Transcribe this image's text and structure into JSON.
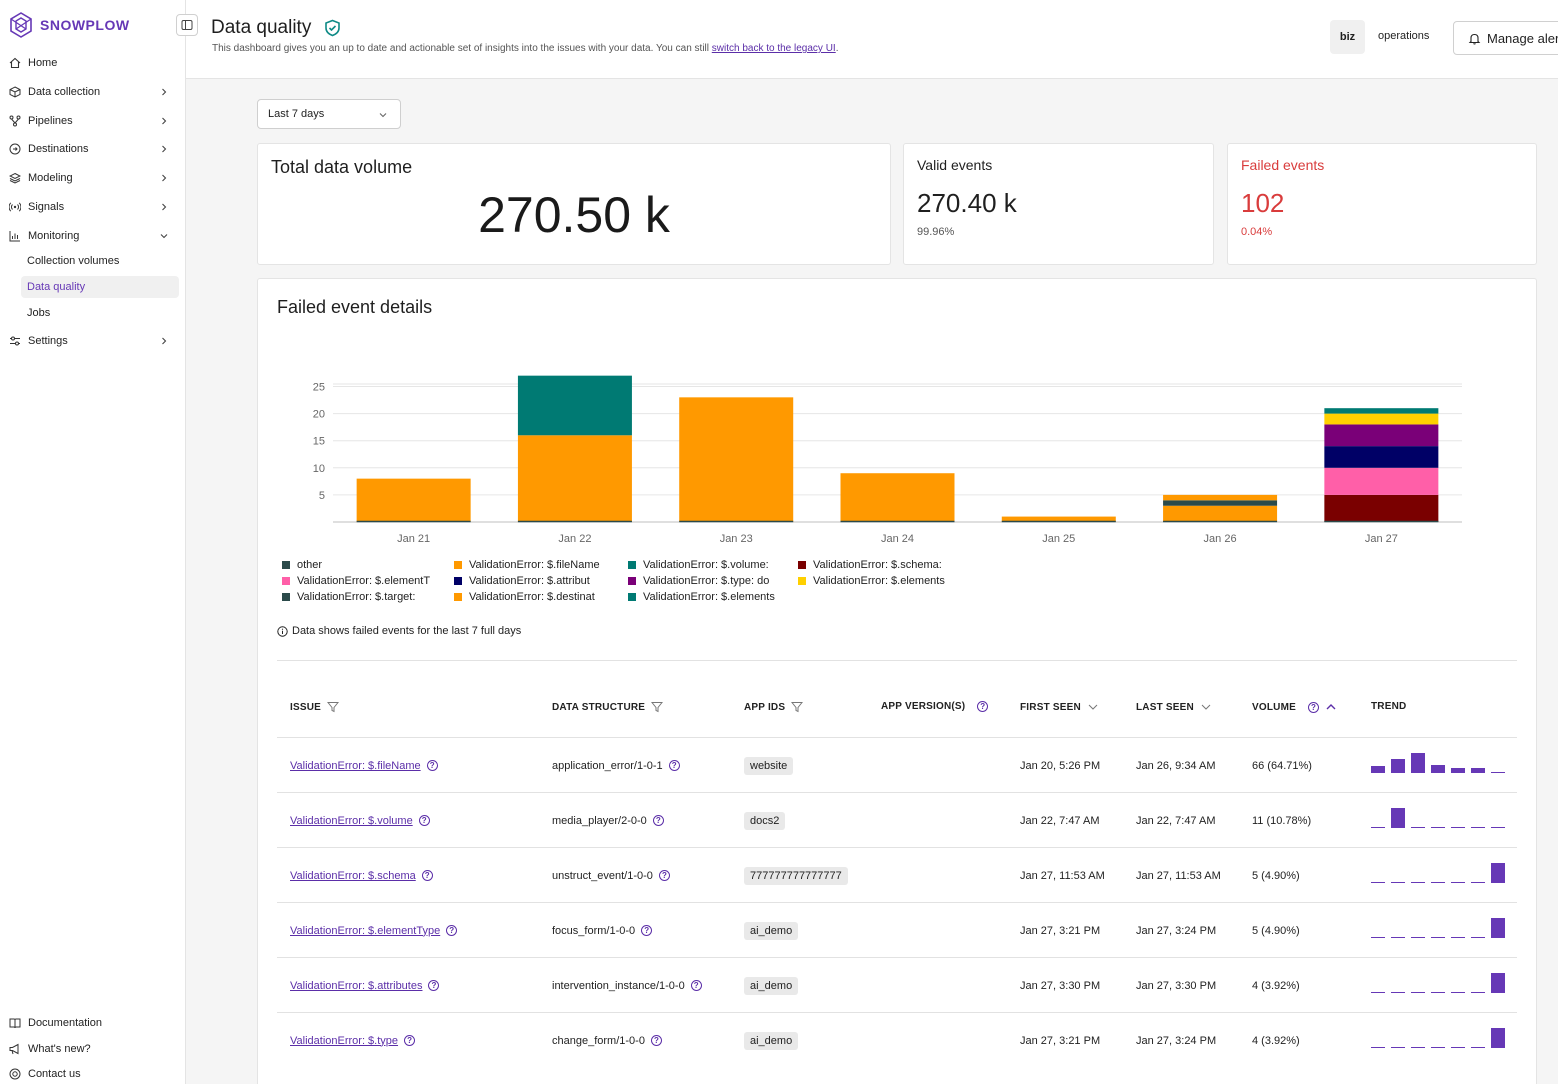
{
  "sidebar": {
    "logo_text": "SNOWPLOW",
    "items": [
      {
        "label": "Home",
        "icon": "home-icon",
        "chevron": false
      },
      {
        "label": "Data collection",
        "icon": "cube-icon",
        "chevron": true
      },
      {
        "label": "Pipelines",
        "icon": "pipeline-icon",
        "chevron": true
      },
      {
        "label": "Destinations",
        "icon": "destination-icon",
        "chevron": true
      },
      {
        "label": "Modeling",
        "icon": "layers-icon",
        "chevron": true
      },
      {
        "label": "Signals",
        "icon": "signal-icon",
        "chevron": true
      },
      {
        "label": "Monitoring",
        "icon": "chart-icon",
        "chevron": "down"
      }
    ],
    "sub_items": [
      "Collection volumes",
      "Data quality",
      "Jobs"
    ],
    "settings": "Settings",
    "footer": [
      "Documentation",
      "What's new?",
      "Contact us"
    ]
  },
  "header": {
    "title": "Data quality",
    "subtitle_pre": "This dashboard gives you an up to date and actionable set of insights into the issues with your data. You can still ",
    "subtitle_link": "switch back to the legacy UI",
    "subtitle_post": ".",
    "org_badge": "biz",
    "org_name": "operations",
    "manage_button": "Manage aler"
  },
  "filters": {
    "period": "Last 7 days"
  },
  "cards": {
    "total": {
      "title": "Total data volume",
      "value": "270.50 k"
    },
    "valid": {
      "title": "Valid events",
      "value": "270.40 k",
      "percent": "99.96%"
    },
    "failed": {
      "title": "Failed events",
      "value": "102",
      "percent": "0.04%"
    }
  },
  "details": {
    "title": "Failed event details",
    "note": "Data shows failed events for the last 7 full days"
  },
  "chart_data": {
    "type": "bar",
    "stacked": true,
    "categories": [
      "Jan 21",
      "Jan 22",
      "Jan 23",
      "Jan 24",
      "Jan 25",
      "Jan 26",
      "Jan 27"
    ],
    "yticks": [
      5,
      10,
      15,
      20,
      25
    ],
    "ylim": [
      0,
      28
    ],
    "series": [
      {
        "name": "ValidationError: $.fileName",
        "color": "#ff9900",
        "values": [
          8,
          16,
          23,
          9,
          1,
          3,
          0
        ]
      },
      {
        "name": "other",
        "color": "#2b4a4a",
        "values": [
          0,
          0,
          0,
          0,
          0,
          1,
          0
        ]
      },
      {
        "name": "ValidationError: $.destinat",
        "color": "#ff9900",
        "values": [
          0,
          0,
          0,
          0,
          0,
          1,
          0
        ]
      },
      {
        "name": "ValidationError: $.volume:",
        "color": "#007a73",
        "values": [
          0,
          11,
          0,
          0,
          0,
          0,
          0
        ]
      },
      {
        "name": "ValidationError: $.schema:",
        "color": "#7a0000",
        "values": [
          0,
          0,
          0,
          0,
          0,
          0,
          5
        ]
      },
      {
        "name": "ValidationError: $.elementT",
        "color": "#ff5fa8",
        "values": [
          0,
          0,
          0,
          0,
          0,
          0,
          5
        ]
      },
      {
        "name": "ValidationError: $.attribut",
        "color": "#000066",
        "values": [
          0,
          0,
          0,
          0,
          0,
          0,
          4
        ]
      },
      {
        "name": "ValidationError: $.type: do",
        "color": "#7a0078",
        "values": [
          0,
          0,
          0,
          0,
          0,
          0,
          4
        ]
      },
      {
        "name": "ValidationError: $.elements",
        "color": "#ffd000",
        "values": [
          0,
          0,
          0,
          0,
          0,
          0,
          2
        ]
      },
      {
        "name": "ValidationError: $.elements",
        "color": "#007a73",
        "values": [
          0,
          0,
          0,
          0,
          0,
          0,
          1
        ]
      },
      {
        "name": "ValidationError: $.target:",
        "color": "#2b4a4a",
        "values": [
          0,
          0,
          0,
          0,
          0,
          0,
          0
        ]
      }
    ]
  },
  "legend": [
    {
      "label": "other",
      "color": "#2b4a4a"
    },
    {
      "label": "ValidationError: $.fileName",
      "color": "#ff9900"
    },
    {
      "label": "ValidationError: $.volume:",
      "color": "#007a73"
    },
    {
      "label": "ValidationError: $.schema:",
      "color": "#7a0000"
    },
    {
      "label": "ValidationError: $.elementT",
      "color": "#ff5fa8"
    },
    {
      "label": "ValidationError: $.attribut",
      "color": "#000066"
    },
    {
      "label": "ValidationError: $.type: do",
      "color": "#7a0078"
    },
    {
      "label": "ValidationError: $.elements",
      "color": "#ffd000"
    },
    {
      "label": "ValidationError: $.target:",
      "color": "#2b4a4a"
    },
    {
      "label": "ValidationError: $.destinat",
      "color": "#ff9900"
    },
    {
      "label": "ValidationError: $.elements",
      "color": "#007a73"
    }
  ],
  "table": {
    "headers": [
      "ISSUE",
      "DATA STRUCTURE",
      "APP IDS",
      "APP VERSION(S)",
      "FIRST SEEN",
      "LAST SEEN",
      "VOLUME",
      "TREND"
    ],
    "rows": [
      {
        "issue": "ValidationError: $.fileName",
        "structure": "application_error/1-0-1",
        "app_id": "website",
        "first": "Jan 20, 5:26 PM",
        "last": "Jan 26, 9:34 AM",
        "volume": "66 (64.71%)",
        "trend": [
          8,
          16,
          23,
          9,
          1,
          3,
          0
        ]
      },
      {
        "issue": "ValidationError: $.volume",
        "structure": "media_player/2-0-0",
        "app_id": "docs2",
        "first": "Jan 22, 7:47 AM",
        "last": "Jan 22, 7:47 AM",
        "volume": "11 (10.78%)",
        "trend": [
          0,
          11,
          0,
          0,
          0,
          0,
          0
        ]
      },
      {
        "issue": "ValidationError: $.schema",
        "structure": "unstruct_event/1-0-0",
        "app_id": "777777777777777",
        "first": "Jan 27, 11:53 AM",
        "last": "Jan 27, 11:53 AM",
        "volume": "5 (4.90%)",
        "trend": [
          0,
          0,
          0,
          0,
          0,
          0,
          5
        ]
      },
      {
        "issue": "ValidationError: $.elementType",
        "structure": "focus_form/1-0-0",
        "app_id": "ai_demo",
        "first": "Jan 27, 3:21 PM",
        "last": "Jan 27, 3:24 PM",
        "volume": "5 (4.90%)",
        "trend": [
          0,
          0,
          0,
          0,
          0,
          0,
          5
        ]
      },
      {
        "issue": "ValidationError: $.attributes",
        "structure": "intervention_instance/1-0-0",
        "app_id": "ai_demo",
        "first": "Jan 27, 3:30 PM",
        "last": "Jan 27, 3:30 PM",
        "volume": "4 (3.92%)",
        "trend": [
          0,
          0,
          0,
          0,
          0,
          0,
          4
        ]
      },
      {
        "issue": "ValidationError: $.type",
        "structure": "change_form/1-0-0",
        "app_id": "ai_demo",
        "first": "Jan 27, 3:21 PM",
        "last": "Jan 27, 3:24 PM",
        "volume": "4 (3.92%)",
        "trend": [
          0,
          0,
          0,
          0,
          0,
          0,
          4
        ]
      }
    ]
  },
  "colors": {
    "accent": "#6638b6",
    "danger": "#d93c3c"
  }
}
